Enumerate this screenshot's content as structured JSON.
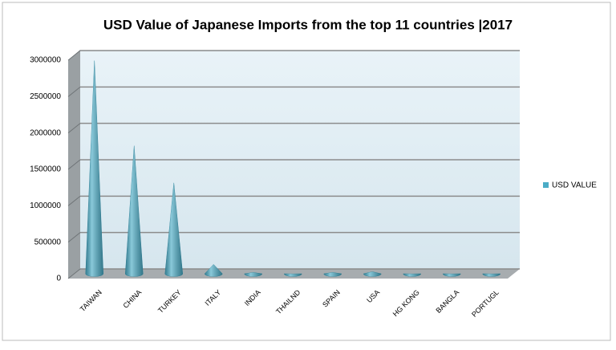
{
  "chart_data": {
    "type": "cone",
    "title": "USD Value of Japanese Imports from the top 11 countries |2017",
    "categories": [
      "TAIWAN",
      "CHINA",
      "TURKEY",
      "ITALY",
      "INDIA",
      "THAILND",
      "SPAIN",
      "USA",
      "HG KONG",
      "BANGLA",
      "PORTUGL"
    ],
    "series": [
      {
        "name": "USD VALUE",
        "color": "#4bacc6",
        "values": [
          2950000,
          1780000,
          1270000,
          150000,
          40000,
          20000,
          40000,
          50000,
          20000,
          20000,
          20000
        ]
      }
    ],
    "ylim": [
      0,
      3000000
    ],
    "yticks": [
      0,
      500000,
      1000000,
      1500000,
      2000000,
      2500000,
      3000000
    ],
    "grid": true,
    "legend": "right"
  }
}
